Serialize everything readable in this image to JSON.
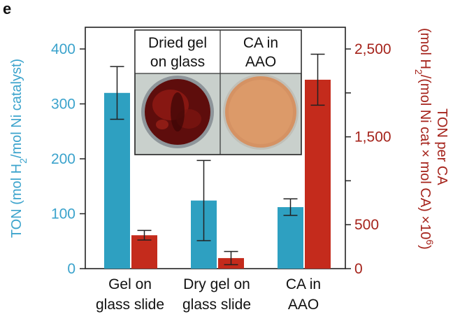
{
  "panel_label": "e",
  "colors": {
    "left_axis": "#3ba3cc",
    "right_axis": "#a5231b",
    "series_ton": "#2ea0c1",
    "series_ton_per_ca": "#c42b1c",
    "inset_bg": "#c9d0cc"
  },
  "left_axis_title": {
    "pre": "TON (mol H",
    "sub": "2",
    "post": "/mol Ni catalyst)"
  },
  "right_axis_title": {
    "line1": "TON per CA",
    "line2_pre": "(mol H",
    "line2_sub": "2",
    "line2_mid": "/(mol Ni cat × mol CA) ×10",
    "line2_sup": "6",
    "line2_post": ")"
  },
  "inset": {
    "panel1": {
      "line1": "Dried gel",
      "line2": "on glass",
      "image": "dark-red-gel-disc"
    },
    "panel2": {
      "line1": "CA in",
      "line2": "AAO",
      "image": "orange-aao-disc"
    }
  },
  "chart_data": {
    "type": "bar",
    "categories": [
      [
        "Gel on",
        "glass slide"
      ],
      [
        "Dry gel on",
        "glass slide"
      ],
      [
        "CA in",
        "AAO"
      ]
    ],
    "series": [
      {
        "axis": "left",
        "values": [
          320,
          124,
          112
        ],
        "error": [
          48,
          73,
          15
        ]
      },
      {
        "axis": "right",
        "values": [
          380,
          120,
          2150
        ],
        "error": [
          55,
          75,
          290
        ]
      }
    ],
    "left_axis": {
      "ylim": [
        0,
        400
      ],
      "ticks": [
        0,
        100,
        200,
        300,
        400
      ],
      "tick_labels": [
        "0",
        "100",
        "200",
        "300",
        "400"
      ]
    },
    "right_axis": {
      "ylim": [
        0,
        2500
      ],
      "major_ticks": [
        0,
        500,
        1500,
        2500
      ],
      "tick_labels": [
        "0",
        "500",
        "1,500",
        "2,500"
      ],
      "minor_ticks": [
        1000,
        2000
      ]
    },
    "grid": false,
    "legend": "none"
  }
}
